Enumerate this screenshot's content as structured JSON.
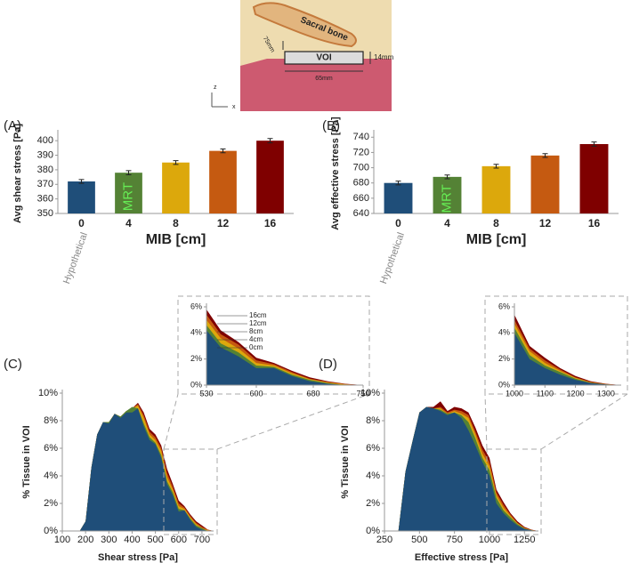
{
  "diagram": {
    "bone": "Sacral bone",
    "gap": "75mm",
    "height": "14mm",
    "voi": "VOI",
    "width": "65mm",
    "z": "z",
    "x": "x"
  },
  "chart_data": [
    {
      "type": "bar",
      "panel": "(A)",
      "ylabel": "Avg shear stress [Pa]",
      "xlabel": "MIB [cm]",
      "categories": [
        "0",
        "4",
        "8",
        "12",
        "16"
      ],
      "values": [
        372,
        378,
        385,
        393,
        400
      ],
      "errors": [
        1.3,
        1.4,
        1.3,
        1.3,
        1.5
      ],
      "colors": [
        "#1f4e79",
        "#548235",
        "#dca80c",
        "#c55a11",
        "#7f0000"
      ],
      "hypothetical_label": "Hypothetical",
      "mrt_label": "MRT",
      "ylim": [
        350,
        405
      ],
      "yticks": [
        350,
        360,
        370,
        380,
        390,
        400
      ]
    },
    {
      "type": "bar",
      "panel": "(B)",
      "ylabel": "Avg effective stress [Pa]",
      "xlabel": "MIB [cm]",
      "categories": [
        "0",
        "4",
        "8",
        "12",
        "16"
      ],
      "values": [
        680,
        688,
        702,
        716,
        731
      ],
      "errors": [
        2.5,
        2.5,
        2.5,
        2.5,
        2.8
      ],
      "colors": [
        "#1f4e79",
        "#548235",
        "#dca80c",
        "#c55a11",
        "#7f0000"
      ],
      "hypothetical_label": "Hypothetical",
      "mrt_label": "MRT",
      "ylim": [
        640,
        745
      ],
      "yticks": [
        640,
        660,
        680,
        700,
        720,
        740
      ]
    },
    {
      "type": "area",
      "panel": "(C)",
      "ylabel": "% Tissue in VOI",
      "xlabel": "Shear stress [Pa]",
      "x": [
        175,
        200,
        225,
        250,
        275,
        300,
        325,
        350,
        375,
        400,
        425,
        450,
        475,
        500,
        525,
        550,
        575,
        600,
        625,
        650,
        675,
        700,
        725,
        750
      ],
      "series": [
        {
          "color": "#7f0000",
          "values": [
            0,
            0.7,
            4.6,
            7.0,
            7.9,
            7.9,
            8.5,
            8.3,
            8.7,
            8.9,
            9.3,
            8.6,
            7.4,
            7.0,
            6.2,
            4.5,
            3.4,
            2.2,
            1.8,
            1.2,
            0.7,
            0.4,
            0.1,
            0
          ]
        },
        {
          "color": "#c55a11",
          "values": [
            0,
            0.7,
            4.6,
            7.0,
            7.9,
            7.9,
            8.5,
            8.3,
            8.7,
            8.9,
            9.2,
            8.4,
            7.2,
            6.8,
            6.0,
            4.2,
            3.2,
            2.0,
            1.7,
            1.1,
            0.6,
            0.3,
            0.1,
            0
          ]
        },
        {
          "color": "#dca80c",
          "values": [
            0,
            0.7,
            4.6,
            7.0,
            7.9,
            7.9,
            8.5,
            8.3,
            8.7,
            8.9,
            9.1,
            8.2,
            7.0,
            6.6,
            5.8,
            3.9,
            3.0,
            1.8,
            1.6,
            1.0,
            0.5,
            0.2,
            0.05,
            0
          ]
        },
        {
          "color": "#548235",
          "values": [
            0,
            0.7,
            4.6,
            7.0,
            7.9,
            7.9,
            8.5,
            8.3,
            8.7,
            9.0,
            8.9,
            7.8,
            6.8,
            6.4,
            5.5,
            3.6,
            2.8,
            1.6,
            1.5,
            0.9,
            0.4,
            0.2,
            0,
            0
          ]
        },
        {
          "color": "#1f4e79",
          "values": [
            0,
            0.7,
            4.6,
            7.0,
            7.9,
            7.8,
            8.5,
            8.2,
            8.6,
            8.6,
            8.9,
            7.6,
            6.6,
            6.3,
            5.3,
            3.4,
            2.6,
            1.4,
            1.5,
            0.8,
            0.3,
            0.1,
            0,
            0
          ]
        }
      ],
      "xlim": [
        100,
        750
      ],
      "xticks": [
        100,
        200,
        300,
        400,
        500,
        600,
        700
      ],
      "ylim": [
        0,
        10
      ],
      "yticks": [
        {
          "value": 0,
          "label": "0%"
        },
        {
          "value": 2,
          "label": "2%"
        },
        {
          "value": 4,
          "label": "4%"
        },
        {
          "value": 6,
          "label": "6%"
        },
        {
          "value": 8,
          "label": "8%"
        },
        {
          "value": 10,
          "label": "10%"
        }
      ]
    },
    {
      "type": "area",
      "inset": true,
      "x": [
        530,
        550,
        575,
        600,
        625,
        650,
        675,
        700,
        725,
        750
      ],
      "series": [
        {
          "name": "16cm",
          "color": "#7f0000",
          "values": [
            5.8,
            4.2,
            3.3,
            2.1,
            1.7,
            1.1,
            0.6,
            0.3,
            0.1,
            0
          ]
        },
        {
          "name": "12cm",
          "color": "#c55a11",
          "values": [
            5.4,
            3.9,
            3.1,
            1.9,
            1.6,
            1.0,
            0.5,
            0.25,
            0.08,
            0
          ]
        },
        {
          "name": "8cm",
          "color": "#dca80c",
          "values": [
            5.0,
            3.6,
            2.8,
            1.7,
            1.5,
            0.9,
            0.45,
            0.2,
            0.05,
            0
          ]
        },
        {
          "name": "4cm",
          "color": "#548235",
          "values": [
            4.6,
            3.2,
            2.5,
            1.5,
            1.4,
            0.8,
            0.4,
            0.15,
            0,
            0
          ]
        },
        {
          "name": "0cm",
          "color": "#1f4e79",
          "values": [
            4.2,
            2.9,
            2.2,
            1.3,
            1.3,
            0.7,
            0.3,
            0.1,
            0,
            0
          ]
        }
      ],
      "xlim": [
        530,
        750
      ],
      "xticks": [
        530,
        600,
        680,
        750
      ],
      "ylim": [
        0,
        6
      ],
      "yticks": [
        {
          "value": 0,
          "label": "0%"
        },
        {
          "value": 2,
          "label": "2%"
        },
        {
          "value": 4,
          "label": "4%"
        },
        {
          "value": 6,
          "label": "6%"
        }
      ]
    },
    {
      "type": "area",
      "panel": "(D)",
      "ylabel": "% Tissue in VOI",
      "xlabel": "Effective stress [Pa]",
      "x": [
        350,
        400,
        450,
        500,
        550,
        600,
        650,
        700,
        750,
        800,
        850,
        900,
        950,
        1000,
        1050,
        1100,
        1150,
        1200,
        1250,
        1300,
        1350
      ],
      "series": [
        {
          "color": "#7f0000",
          "values": [
            0,
            4.3,
            6.5,
            8.6,
            9.0,
            9.0,
            9.4,
            8.7,
            9.0,
            8.9,
            8.6,
            7.5,
            6.2,
            5.3,
            3.0,
            2.1,
            1.3,
            0.7,
            0.3,
            0.1,
            0
          ]
        },
        {
          "color": "#c55a11",
          "values": [
            0,
            4.3,
            6.5,
            8.6,
            9.0,
            8.9,
            9.0,
            8.6,
            8.8,
            8.7,
            8.4,
            7.2,
            5.9,
            5.0,
            2.8,
            1.9,
            1.2,
            0.6,
            0.25,
            0.08,
            0
          ]
        },
        {
          "color": "#dca80c",
          "values": [
            0,
            4.3,
            6.5,
            8.6,
            9.0,
            8.9,
            8.9,
            8.5,
            8.7,
            8.5,
            8.2,
            7.0,
            5.6,
            4.7,
            2.6,
            1.7,
            1.1,
            0.55,
            0.2,
            0.06,
            0
          ]
        },
        {
          "color": "#548235",
          "values": [
            0,
            4.3,
            6.5,
            8.6,
            9.0,
            8.9,
            8.8,
            8.5,
            8.6,
            8.4,
            7.9,
            6.7,
            5.3,
            4.4,
            2.4,
            1.5,
            1.0,
            0.5,
            0.18,
            0.05,
            0
          ]
        },
        {
          "color": "#1f4e79",
          "values": [
            0,
            4.3,
            6.5,
            8.6,
            9.0,
            8.9,
            8.7,
            8.4,
            8.6,
            8.2,
            7.3,
            6.2,
            5.0,
            4.0,
            2.0,
            1.3,
            0.8,
            0.4,
            0.15,
            0.05,
            0
          ]
        }
      ],
      "xlim": [
        250,
        1350
      ],
      "xticks": [
        250,
        500,
        750,
        1000,
        1250
      ],
      "ylim": [
        0,
        10
      ],
      "yticks": [
        {
          "value": 0,
          "label": "0%"
        },
        {
          "value": 2,
          "label": "2%"
        },
        {
          "value": 4,
          "label": "4%"
        },
        {
          "value": 6,
          "label": "6%"
        },
        {
          "value": 8,
          "label": "8%"
        },
        {
          "value": 10,
          "label": "10%"
        }
      ]
    },
    {
      "type": "area",
      "inset": true,
      "x": [
        1000,
        1050,
        1100,
        1150,
        1200,
        1250,
        1300,
        1350
      ],
      "series": [
        {
          "color": "#7f0000",
          "values": [
            5.4,
            3.0,
            2.1,
            1.3,
            0.7,
            0.3,
            0.1,
            0
          ]
        },
        {
          "color": "#c55a11",
          "values": [
            5.0,
            2.8,
            1.9,
            1.2,
            0.6,
            0.25,
            0.08,
            0
          ]
        },
        {
          "color": "#dca80c",
          "values": [
            4.7,
            2.6,
            1.7,
            1.1,
            0.55,
            0.2,
            0.06,
            0
          ]
        },
        {
          "color": "#548235",
          "values": [
            4.4,
            2.3,
            1.5,
            1.0,
            0.5,
            0.18,
            0.05,
            0
          ]
        },
        {
          "color": "#1f4e79",
          "values": [
            4.0,
            2.0,
            1.3,
            0.8,
            0.4,
            0.15,
            0.05,
            0
          ]
        }
      ],
      "xlim": [
        1000,
        1350
      ],
      "xticks": [
        1000,
        1100,
        1200,
        1300
      ],
      "ylim": [
        0,
        6
      ],
      "yticks": [
        {
          "value": 0,
          "label": "0%"
        },
        {
          "value": 2,
          "label": "2%"
        },
        {
          "value": 4,
          "label": "4%"
        },
        {
          "value": 6,
          "label": "6%"
        }
      ]
    }
  ]
}
